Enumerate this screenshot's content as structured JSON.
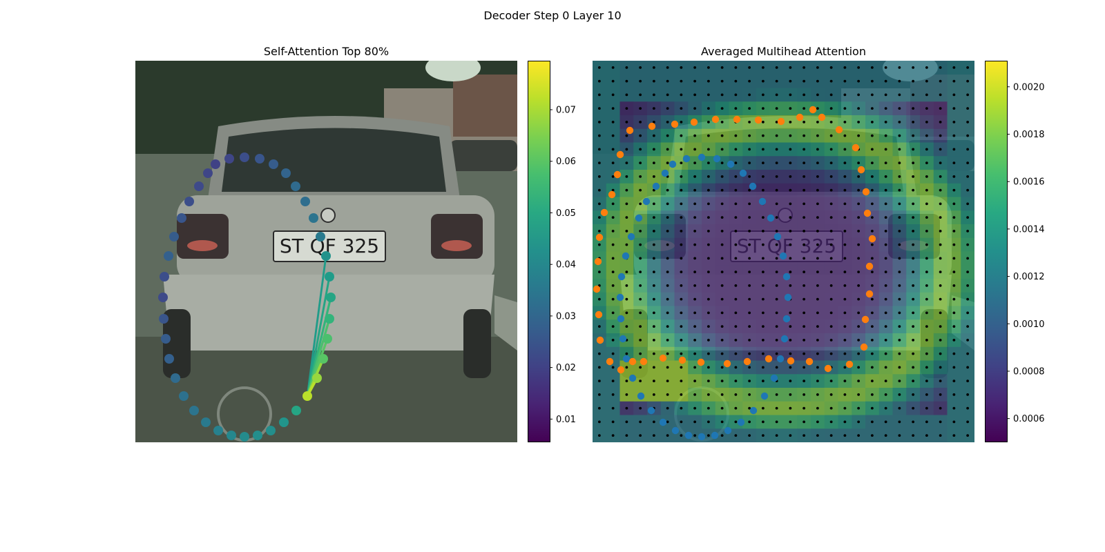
{
  "figure": {
    "suptitle": "Decoder Step 0 Layer 10"
  },
  "chart_data": [
    {
      "type": "scatter",
      "title": "Self-Attention Top 80%",
      "background": "photo: rear view of a silver hatchback car (license plate reads ST QF 325)",
      "colormap": "viridis",
      "colorbar": {
        "ticks": [
          0.01,
          0.02,
          0.03,
          0.04,
          0.05,
          0.06,
          0.07
        ],
        "range": [
          0.0055,
          0.0795
        ]
      },
      "series": [
        {
          "points": [
            {
              "x": 105,
              "y": 163
            },
            {
              "x": 92,
              "y": 182
            },
            {
              "x": 78,
              "y": 204
            },
            {
              "x": 67,
              "y": 228
            },
            {
              "x": 56,
              "y": 255
            },
            {
              "x": 48,
              "y": 283
            },
            {
              "x": 42,
              "y": 313
            },
            {
              "x": 40,
              "y": 343
            },
            {
              "x": 41,
              "y": 374
            },
            {
              "x": 44,
              "y": 403
            },
            {
              "x": 49,
              "y": 432
            },
            {
              "x": 58,
              "y": 460
            },
            {
              "x": 70,
              "y": 486
            },
            {
              "x": 85,
              "y": 507
            },
            {
              "x": 102,
              "y": 524
            },
            {
              "x": 120,
              "y": 536
            },
            {
              "x": 139,
              "y": 543
            },
            {
              "x": 158,
              "y": 545
            },
            {
              "x": 177,
              "y": 543
            },
            {
              "x": 196,
              "y": 536
            },
            {
              "x": 215,
              "y": 524
            },
            {
              "x": 233,
              "y": 507
            },
            {
              "x": 249,
              "y": 486
            },
            {
              "x": 263,
              "y": 460
            },
            {
              "x": 272,
              "y": 432
            },
            {
              "x": 278,
              "y": 403
            },
            {
              "x": 281,
              "y": 374
            },
            {
              "x": 283,
              "y": 343
            },
            {
              "x": 281,
              "y": 313
            },
            {
              "x": 276,
              "y": 283
            },
            {
              "x": 268,
              "y": 255
            },
            {
              "x": 258,
              "y": 228
            },
            {
              "x": 246,
              "y": 204
            },
            {
              "x": 232,
              "y": 182
            },
            {
              "x": 218,
              "y": 163
            },
            {
              "x": 200,
              "y": 150
            },
            {
              "x": 180,
              "y": 142
            },
            {
              "x": 158,
              "y": 140
            },
            {
              "x": 136,
              "y": 142
            },
            {
              "x": 116,
              "y": 150
            }
          ],
          "values": [
            0.021,
            0.022,
            0.023,
            0.025,
            0.027,
            0.028,
            0.023,
            0.022,
            0.025,
            0.027,
            0.028,
            0.031,
            0.033,
            0.034,
            0.036,
            0.038,
            0.04,
            0.041,
            0.042,
            0.042,
            0.044,
            0.049,
            0.072,
            0.068,
            0.06,
            0.058,
            0.054,
            0.049,
            0.046,
            0.043,
            0.036,
            0.034,
            0.032,
            0.031,
            0.029,
            0.027,
            0.025,
            0.023,
            0.021,
            0.02
          ],
          "attention_links": [
            {
              "from": 22,
              "to": 23,
              "weight": 0.072
            },
            {
              "from": 22,
              "to": 24,
              "weight": 0.068
            },
            {
              "from": 22,
              "to": 25,
              "weight": 0.06
            },
            {
              "from": 22,
              "to": 26,
              "weight": 0.058
            },
            {
              "from": 22,
              "to": 27,
              "weight": 0.054
            },
            {
              "from": 22,
              "to": 28,
              "weight": 0.049
            },
            {
              "from": 22,
              "to": 29,
              "weight": 0.046
            }
          ]
        }
      ]
    },
    {
      "type": "heatmap",
      "title": "Averaged Multihead Attention",
      "colormap": "viridis",
      "overlay": "semi-transparent 28x28 attention grid over the car photo, with a black reference dot at each cell centre",
      "grid": {
        "rows": 28,
        "cols": 28
      },
      "colorbar": {
        "ticks": [
          0.0006,
          0.0008,
          0.001,
          0.0012,
          0.0014,
          0.0016,
          0.0018,
          0.002
        ],
        "range": [
          0.0005,
          0.00211
        ]
      },
      "series": [
        {
          "color": "#1f77b4",
          "points": [
            {
              "x": 105,
              "y": 163
            },
            {
              "x": 92,
              "y": 182
            },
            {
              "x": 78,
              "y": 204
            },
            {
              "x": 67,
              "y": 228
            },
            {
              "x": 56,
              "y": 255
            },
            {
              "x": 48,
              "y": 283
            },
            {
              "x": 42,
              "y": 313
            },
            {
              "x": 40,
              "y": 343
            },
            {
              "x": 41,
              "y": 374
            },
            {
              "x": 44,
              "y": 403
            },
            {
              "x": 49,
              "y": 432
            },
            {
              "x": 58,
              "y": 460
            },
            {
              "x": 70,
              "y": 486
            },
            {
              "x": 85,
              "y": 507
            },
            {
              "x": 102,
              "y": 524
            },
            {
              "x": 120,
              "y": 536
            },
            {
              "x": 139,
              "y": 543
            },
            {
              "x": 158,
              "y": 545
            },
            {
              "x": 177,
              "y": 543
            },
            {
              "x": 196,
              "y": 536
            },
            {
              "x": 215,
              "y": 524
            },
            {
              "x": 233,
              "y": 507
            },
            {
              "x": 249,
              "y": 486
            },
            {
              "x": 263,
              "y": 460
            },
            {
              "x": 272,
              "y": 432
            },
            {
              "x": 278,
              "y": 403
            },
            {
              "x": 281,
              "y": 374
            },
            {
              "x": 283,
              "y": 343
            },
            {
              "x": 281,
              "y": 313
            },
            {
              "x": 276,
              "y": 283
            },
            {
              "x": 268,
              "y": 255
            },
            {
              "x": 258,
              "y": 228
            },
            {
              "x": 246,
              "y": 204
            },
            {
              "x": 232,
              "y": 182
            },
            {
              "x": 218,
              "y": 163
            },
            {
              "x": 200,
              "y": 150
            },
            {
              "x": 180,
              "y": 142
            },
            {
              "x": 158,
              "y": 140
            },
            {
              "x": 136,
              "y": 142
            },
            {
              "x": 116,
              "y": 150
            }
          ]
        },
        {
          "color": "#ff7f0e",
          "points": [
            {
              "x": 54,
              "y": 101
            },
            {
              "x": 40,
              "y": 136
            },
            {
              "x": 36,
              "y": 165
            },
            {
              "x": 28,
              "y": 194
            },
            {
              "x": 17,
              "y": 220
            },
            {
              "x": 10,
              "y": 256
            },
            {
              "x": 8,
              "y": 291
            },
            {
              "x": 6,
              "y": 331
            },
            {
              "x": 9,
              "y": 368
            },
            {
              "x": 11,
              "y": 405
            },
            {
              "x": 25,
              "y": 436
            },
            {
              "x": 41,
              "y": 448
            },
            {
              "x": 58,
              "y": 436
            },
            {
              "x": 74,
              "y": 436
            },
            {
              "x": 102,
              "y": 431
            },
            {
              "x": 130,
              "y": 434
            },
            {
              "x": 157,
              "y": 437
            },
            {
              "x": 195,
              "y": 439
            },
            {
              "x": 224,
              "y": 436
            },
            {
              "x": 255,
              "y": 432
            },
            {
              "x": 287,
              "y": 435
            },
            {
              "x": 314,
              "y": 436
            },
            {
              "x": 341,
              "y": 446
            },
            {
              "x": 372,
              "y": 440
            },
            {
              "x": 393,
              "y": 415
            },
            {
              "x": 395,
              "y": 375
            },
            {
              "x": 401,
              "y": 338
            },
            {
              "x": 401,
              "y": 298
            },
            {
              "x": 405,
              "y": 258
            },
            {
              "x": 398,
              "y": 221
            },
            {
              "x": 396,
              "y": 190
            },
            {
              "x": 389,
              "y": 158
            },
            {
              "x": 381,
              "y": 126
            },
            {
              "x": 357,
              "y": 100
            },
            {
              "x": 332,
              "y": 82
            },
            {
              "x": 319,
              "y": 71
            },
            {
              "x": 300,
              "y": 82
            },
            {
              "x": 273,
              "y": 88
            },
            {
              "x": 240,
              "y": 86
            },
            {
              "x": 209,
              "y": 85
            },
            {
              "x": 178,
              "y": 85
            },
            {
              "x": 147,
              "y": 89
            },
            {
              "x": 119,
              "y": 92
            },
            {
              "x": 86,
              "y": 95
            }
          ]
        }
      ]
    }
  ]
}
